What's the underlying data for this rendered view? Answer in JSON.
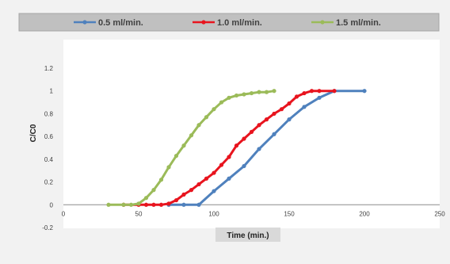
{
  "chart_data": {
    "type": "line",
    "xlabel": "Time (min.)",
    "ylabel": "C/C0",
    "xlim": [
      0,
      250
    ],
    "ylim": [
      -0.2,
      1.2
    ],
    "xticks": [
      0,
      50,
      100,
      150,
      200,
      250
    ],
    "yticks": [
      -0.2,
      0,
      0.2,
      0.4,
      0.6,
      0.8,
      1,
      1.2
    ],
    "xtick_labels": [
      "0",
      "50",
      "100",
      "150",
      "200",
      "250"
    ],
    "ytick_labels": [
      "-0.2",
      "0",
      "0.2",
      "0.4",
      "0.6",
      "0.8",
      "1",
      "1.2"
    ],
    "legend_position": "top",
    "grid": false,
    "series": [
      {
        "name": "0.5 ml/min.",
        "color": "#4f81bd",
        "x": [
          70,
          80,
          90,
          100,
          110,
          120,
          130,
          140,
          150,
          160,
          170,
          180,
          200
        ],
        "y": [
          0,
          0,
          0,
          0.12,
          0.23,
          0.34,
          0.49,
          0.62,
          0.75,
          0.86,
          0.94,
          1.0,
          1.0
        ]
      },
      {
        "name": "1.0 ml/min.",
        "color": "#e8141e",
        "x": [
          40,
          50,
          55,
          60,
          65,
          70,
          75,
          80,
          85,
          90,
          95,
          100,
          105,
          110,
          115,
          120,
          125,
          130,
          135,
          140,
          145,
          150,
          155,
          160,
          165,
          170,
          180
        ],
        "y": [
          0,
          0,
          0,
          0,
          0,
          0.01,
          0.04,
          0.09,
          0.13,
          0.18,
          0.23,
          0.28,
          0.35,
          0.42,
          0.52,
          0.58,
          0.64,
          0.7,
          0.75,
          0.8,
          0.84,
          0.89,
          0.95,
          0.98,
          1.0,
          1.0,
          1.0
        ]
      },
      {
        "name": "1.5 ml/min.",
        "color": "#9bbb59",
        "x": [
          30,
          40,
          45,
          50,
          55,
          60,
          65,
          70,
          75,
          80,
          85,
          90,
          95,
          100,
          105,
          110,
          115,
          120,
          125,
          130,
          135,
          140
        ],
        "y": [
          0,
          0,
          0,
          0.01,
          0.06,
          0.13,
          0.22,
          0.33,
          0.43,
          0.52,
          0.61,
          0.7,
          0.77,
          0.84,
          0.9,
          0.94,
          0.96,
          0.97,
          0.98,
          0.99,
          0.99,
          1.0
        ]
      }
    ]
  }
}
